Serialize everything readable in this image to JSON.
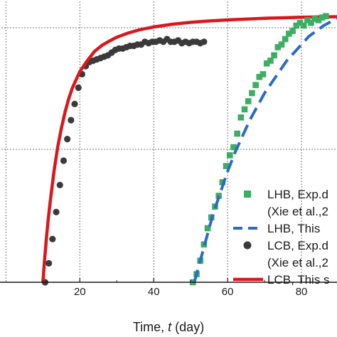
{
  "chart_data": {
    "type": "line",
    "xlabel_prefix": "Time, ",
    "xlabel_var": "t",
    "xlabel_suffix": " (day)",
    "ylabel": "",
    "xlim": [
      -2,
      90
    ],
    "ylim": [
      0,
      1.05
    ],
    "xticks": [
      20,
      40,
      60,
      80
    ],
    "grid": true,
    "legend_position": "lower-right",
    "series": [
      {
        "name": "LCB, Exp.d",
        "name_line2": "(Xie et al.,2",
        "kind": "scatter",
        "marker": "circle",
        "color": "#3a3a3a",
        "x": [
          10.6,
          11.6,
          12.6,
          13.6,
          14.6,
          15.6,
          16.6,
          17.6,
          18.6,
          19.6,
          20.6,
          21.6,
          22.6,
          23.6,
          24.6,
          25.6,
          26.6,
          27.6,
          28.6,
          29.6,
          30.6,
          31.6,
          32.6,
          33.6,
          34.6,
          35.6,
          36.6,
          37.6,
          38.6,
          39.6,
          40.6,
          41.6,
          42.6,
          43.6,
          44.6,
          45.6,
          46.6,
          47.6,
          48.6,
          49.6,
          50.6,
          51.6,
          52.6,
          53.6
        ],
        "y": [
          0.0,
          0.07,
          0.16,
          0.26,
          0.36,
          0.45,
          0.53,
          0.6,
          0.66,
          0.72,
          0.77,
          0.8,
          0.815,
          0.82,
          0.825,
          0.83,
          0.835,
          0.84,
          0.85,
          0.86,
          0.865,
          0.865,
          0.87,
          0.875,
          0.875,
          0.88,
          0.88,
          0.89,
          0.885,
          0.89,
          0.89,
          0.895,
          0.89,
          0.9,
          0.89,
          0.89,
          0.895,
          0.885,
          0.89,
          0.885,
          0.89,
          0.89,
          0.885,
          0.89
        ]
      },
      {
        "name": "LCB, This s",
        "kind": "line",
        "style": "solid",
        "color": "#d9181e",
        "x": [
          10.0,
          10.5,
          11,
          11.5,
          12,
          13,
          14,
          15,
          16,
          17,
          18,
          19,
          20,
          22,
          24,
          26,
          28,
          30,
          33,
          36,
          40,
          45,
          50,
          55,
          60,
          65,
          70,
          75,
          80,
          85,
          90
        ],
        "y": [
          0.0,
          0.09,
          0.17,
          0.24,
          0.3,
          0.41,
          0.5,
          0.57,
          0.63,
          0.68,
          0.72,
          0.75,
          0.78,
          0.82,
          0.855,
          0.877,
          0.893,
          0.907,
          0.922,
          0.934,
          0.945,
          0.955,
          0.962,
          0.967,
          0.971,
          0.974,
          0.977,
          0.979,
          0.981,
          0.982,
          0.983
        ]
      },
      {
        "name": "LHB, Exp.d",
        "name_line2": "(Xie et al.,2",
        "kind": "scatter",
        "marker": "square",
        "color": "#3cae62",
        "x": [
          50.6,
          51.6,
          52.6,
          53.6,
          54.6,
          55.6,
          56.6,
          57.6,
          58.6,
          59.6,
          60.6,
          61.6,
          62.6,
          63.6,
          64.6,
          65.6,
          66.6,
          67.6,
          68.6,
          69.6,
          70.6,
          71.6,
          72.6,
          73.6,
          74.6,
          75.6,
          76.6,
          77.6,
          78.6,
          79.6,
          80.6,
          81.6,
          82.6,
          83.6,
          84.6,
          85.6,
          86.6
        ],
        "y": [
          0.0,
          0.03,
          0.08,
          0.14,
          0.2,
          0.24,
          0.28,
          0.32,
          0.37,
          0.43,
          0.47,
          0.5,
          0.55,
          0.61,
          0.64,
          0.67,
          0.7,
          0.73,
          0.76,
          0.77,
          0.81,
          0.82,
          0.84,
          0.87,
          0.88,
          0.9,
          0.92,
          0.93,
          0.95,
          0.96,
          0.95,
          0.97,
          0.96,
          0.975,
          0.97,
          0.98,
          0.985
        ]
      },
      {
        "name": "LHB, This",
        "kind": "line",
        "style": "dashed",
        "color": "#2a6bc7",
        "x": [
          51.0,
          52,
          53,
          54,
          55,
          56,
          57,
          58,
          60,
          62,
          64,
          66,
          68,
          70,
          72,
          74,
          76,
          78,
          80,
          82,
          84,
          86,
          88,
          90
        ],
        "y": [
          0.0,
          0.05,
          0.1,
          0.15,
          0.2,
          0.25,
          0.29,
          0.33,
          0.41,
          0.48,
          0.54,
          0.6,
          0.65,
          0.7,
          0.74,
          0.78,
          0.82,
          0.85,
          0.88,
          0.91,
          0.93,
          0.95,
          0.965,
          0.98
        ]
      }
    ],
    "legend": [
      {
        "series": 2,
        "symbol": "square",
        "line1": "LHB, Exp.d",
        "line2": "(Xie et al.,2"
      },
      {
        "series": 3,
        "symbol": "dash",
        "line1": "LHB, This"
      },
      {
        "series": 0,
        "symbol": "circle",
        "line1": "LCB, Exp.d",
        "line2": "(Xie et al.,2"
      },
      {
        "series": 1,
        "symbol": "solid",
        "line1": "LCB, This s"
      }
    ]
  }
}
